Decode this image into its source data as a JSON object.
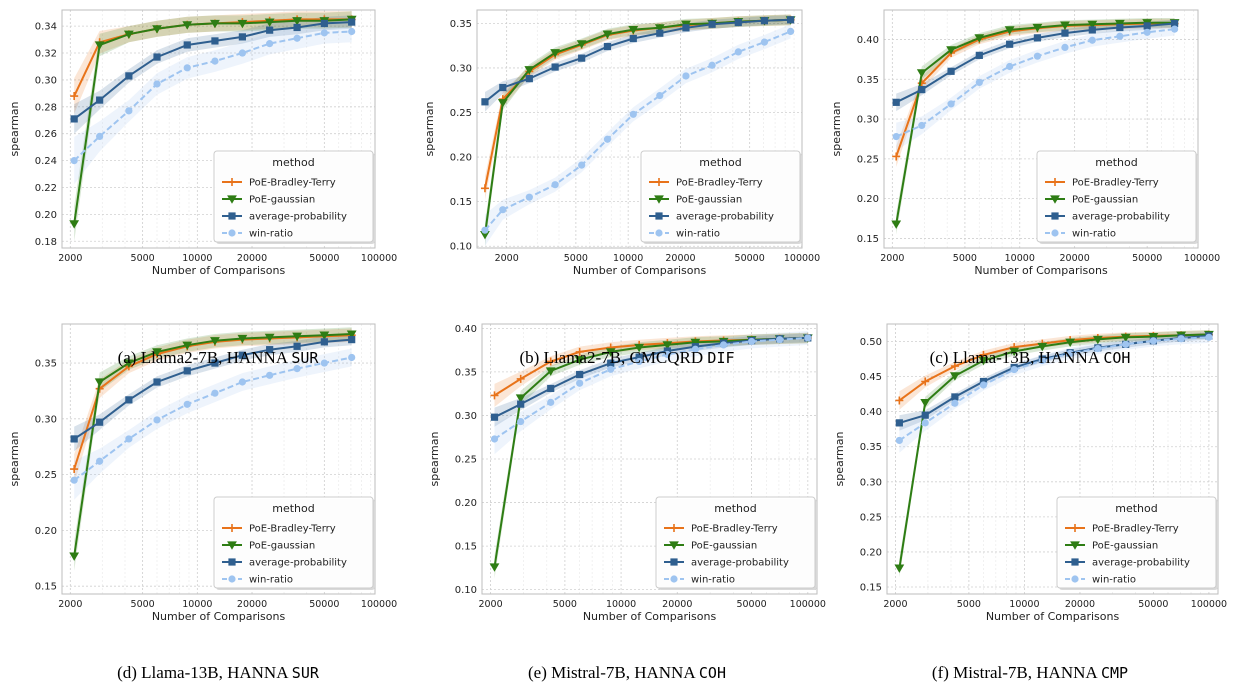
{
  "colors": {
    "PoE-Bradley-Terry": "#e8731a",
    "PoE-gaussian": "#2e7d14",
    "average-probability": "#2f5f8f",
    "win-ratio": "#9ec4f0",
    "grid": "#d0d0d0",
    "plot_bg": "#ffffff"
  },
  "legend": {
    "title": "method",
    "entries": [
      "PoE-Bradley-Terry",
      "PoE-gaussian",
      "average-probability",
      "win-ratio"
    ]
  },
  "captions": [
    {
      "label": "(a) Llama2-7B, HANNA",
      "code": "SUR"
    },
    {
      "label": "(b) Llama2-7B, CMCQRD",
      "code": "DIF"
    },
    {
      "label": "(c) Llama-13B, HANNA",
      "code": "COH"
    },
    {
      "label": "(d) Llama-13B, HANNA",
      "code": "SUR"
    },
    {
      "label": "(e) Mistral-7B, HANNA",
      "code": "COH"
    },
    {
      "label": "(f) Mistral-7B, HANNA",
      "code": "CMP"
    }
  ],
  "chart_data": [
    {
      "type": "line",
      "title": "(a) Llama2-7B, HANNA SUR",
      "xlabel": "Number of Comparisons",
      "ylabel": "spearman",
      "xscale": "log",
      "xlim": [
        1800,
        95000
      ],
      "ylim": [
        0.175,
        0.352
      ],
      "xticks": [
        2000,
        5000,
        10000,
        20000,
        50000,
        100000
      ],
      "xtick_labels": [
        "2000",
        "5000",
        "10000",
        "20000",
        "50000",
        "100000"
      ],
      "yticks": [
        0.18,
        0.2,
        0.22,
        0.24,
        0.26,
        0.28,
        0.3,
        0.32,
        0.34
      ],
      "ytick_labels": [
        "0.18",
        "0.20",
        "0.22",
        "0.24",
        "0.26",
        "0.28",
        "0.30",
        "0.32",
        "0.34"
      ],
      "legend_position": "lower-right",
      "x": [
        2100,
        2900,
        4200,
        6000,
        8800,
        12500,
        17700,
        25000,
        35400,
        50000,
        70700
      ],
      "series": [
        {
          "name": "PoE-Bradley-Terry",
          "values": [
            0.288,
            0.328,
            0.334,
            0.338,
            0.341,
            0.342,
            0.343,
            0.344,
            0.345,
            0.345,
            0.345
          ]
        },
        {
          "name": "PoE-gaussian",
          "values": [
            0.193,
            0.326,
            0.334,
            0.338,
            0.341,
            0.342,
            0.342,
            0.343,
            0.344,
            0.344,
            0.345
          ]
        },
        {
          "name": "average-probability",
          "values": [
            0.271,
            0.285,
            0.303,
            0.317,
            0.326,
            0.329,
            0.332,
            0.337,
            0.339,
            0.342,
            0.343
          ]
        },
        {
          "name": "win-ratio",
          "values": [
            0.24,
            0.258,
            0.277,
            0.297,
            0.309,
            0.314,
            0.32,
            0.327,
            0.331,
            0.335,
            0.336
          ]
        }
      ]
    },
    {
      "type": "line",
      "title": "(b) Llama2-7B, CMCQRD DIF",
      "xlabel": "Number of Comparisons",
      "ylabel": "spearman",
      "xscale": "log",
      "xlim": [
        1350,
        100000
      ],
      "ylim": [
        0.098,
        0.365
      ],
      "xticks": [
        2000,
        5000,
        10000,
        20000,
        50000,
        100000
      ],
      "xtick_labels": [
        "2000",
        "5000",
        "10000",
        "20000",
        "50000",
        "100000"
      ],
      "yticks": [
        0.1,
        0.15,
        0.2,
        0.25,
        0.3,
        0.35
      ],
      "ytick_labels": [
        "0.10",
        "0.15",
        "0.20",
        "0.25",
        "0.30",
        "0.35"
      ],
      "legend_position": "lower-right",
      "x": [
        1500,
        1900,
        2700,
        3800,
        5400,
        7600,
        10700,
        15200,
        21500,
        30400,
        43000,
        60800,
        86000
      ],
      "series": [
        {
          "name": "PoE-Bradley-Terry",
          "values": [
            0.165,
            0.265,
            0.296,
            0.315,
            0.326,
            0.337,
            0.342,
            0.345,
            0.348,
            0.35,
            0.352,
            0.353,
            0.354
          ]
        },
        {
          "name": "PoE-gaussian",
          "values": [
            0.113,
            0.261,
            0.298,
            0.317,
            0.327,
            0.338,
            0.343,
            0.345,
            0.349,
            0.35,
            0.352,
            0.353,
            0.354
          ]
        },
        {
          "name": "average-probability",
          "values": [
            0.262,
            0.278,
            0.288,
            0.301,
            0.311,
            0.324,
            0.333,
            0.339,
            0.345,
            0.349,
            0.351,
            0.353,
            0.354
          ]
        },
        {
          "name": "win-ratio",
          "values": [
            0.118,
            0.141,
            0.155,
            0.169,
            0.191,
            0.22,
            0.248,
            0.269,
            0.291,
            0.303,
            0.318,
            0.329,
            0.341
          ]
        }
      ]
    },
    {
      "type": "line",
      "title": "(c) Llama-13B, HANNA COH",
      "xlabel": "Number of Comparisons",
      "ylabel": "spearman",
      "xscale": "log",
      "xlim": [
        1800,
        95000
      ],
      "ylim": [
        0.138,
        0.437
      ],
      "xticks": [
        2000,
        5000,
        10000,
        20000,
        50000,
        100000
      ],
      "xtick_labels": [
        "2000",
        "5000",
        "10000",
        "20000",
        "50000",
        "100000"
      ],
      "yticks": [
        0.15,
        0.2,
        0.25,
        0.3,
        0.35,
        0.4
      ],
      "ytick_labels": [
        "0.15",
        "0.20",
        "0.25",
        "0.30",
        "0.35",
        "0.40"
      ],
      "legend_position": "lower-right",
      "x": [
        2100,
        2900,
        4200,
        6000,
        8800,
        12500,
        17700,
        25000,
        35400,
        50000,
        70700
      ],
      "series": [
        {
          "name": "PoE-Bradley-Terry",
          "values": [
            0.253,
            0.345,
            0.383,
            0.4,
            0.41,
            0.414,
            0.417,
            0.418,
            0.419,
            0.42,
            0.42
          ]
        },
        {
          "name": "PoE-gaussian",
          "values": [
            0.168,
            0.358,
            0.387,
            0.402,
            0.412,
            0.415,
            0.418,
            0.419,
            0.42,
            0.421,
            0.421
          ]
        },
        {
          "name": "average-probability",
          "values": [
            0.321,
            0.337,
            0.36,
            0.38,
            0.394,
            0.402,
            0.408,
            0.412,
            0.415,
            0.417,
            0.42
          ]
        },
        {
          "name": "win-ratio",
          "values": [
            0.278,
            0.292,
            0.319,
            0.346,
            0.366,
            0.379,
            0.39,
            0.399,
            0.404,
            0.409,
            0.413
          ]
        }
      ]
    },
    {
      "type": "line",
      "title": "(d) Llama-13B, HANNA SUR",
      "xlabel": "Number of Comparisons",
      "ylabel": "spearman",
      "xscale": "log",
      "xlim": [
        1800,
        95000
      ],
      "ylim": [
        0.143,
        0.385
      ],
      "xticks": [
        2000,
        5000,
        10000,
        20000,
        50000,
        100000
      ],
      "xtick_labels": [
        "2000",
        "5000",
        "10000",
        "20000",
        "50000",
        "100000"
      ],
      "yticks": [
        0.15,
        0.2,
        0.25,
        0.3,
        0.35
      ],
      "ytick_labels": [
        "0.15",
        "0.20",
        "0.25",
        "0.30",
        "0.35"
      ],
      "legend_position": "lower-right",
      "x": [
        2100,
        2900,
        4200,
        6000,
        8800,
        12500,
        17700,
        25000,
        35400,
        50000,
        70700
      ],
      "series": [
        {
          "name": "PoE-Bradley-Terry",
          "values": [
            0.255,
            0.327,
            0.347,
            0.358,
            0.365,
            0.369,
            0.371,
            0.372,
            0.373,
            0.374,
            0.375
          ]
        },
        {
          "name": "PoE-gaussian",
          "values": [
            0.177,
            0.333,
            0.35,
            0.36,
            0.366,
            0.37,
            0.372,
            0.373,
            0.374,
            0.375,
            0.376
          ]
        },
        {
          "name": "average-probability",
          "values": [
            0.282,
            0.297,
            0.317,
            0.333,
            0.343,
            0.35,
            0.357,
            0.362,
            0.365,
            0.369,
            0.371
          ]
        },
        {
          "name": "win-ratio",
          "values": [
            0.245,
            0.262,
            0.282,
            0.299,
            0.313,
            0.323,
            0.333,
            0.339,
            0.345,
            0.35,
            0.355
          ]
        }
      ]
    },
    {
      "type": "line",
      "title": "(e) Mistral-7B, HANNA COH",
      "xlabel": "Number of Comparisons",
      "ylabel": "spearman",
      "xscale": "log",
      "xlim": [
        1800,
        112000
      ],
      "ylim": [
        0.095,
        0.405
      ],
      "xticks": [
        2000,
        5000,
        10000,
        20000,
        50000,
        100000
      ],
      "xtick_labels": [
        "2000",
        "5000",
        "10000",
        "20000",
        "50000",
        "100000"
      ],
      "yticks": [
        0.1,
        0.15,
        0.2,
        0.25,
        0.3,
        0.35,
        0.4
      ],
      "ytick_labels": [
        "0.10",
        "0.15",
        "0.20",
        "0.25",
        "0.30",
        "0.35",
        "0.40"
      ],
      "legend_position": "lower-right",
      "x": [
        2100,
        2900,
        4200,
        6000,
        8800,
        12500,
        17700,
        25000,
        35400,
        50000,
        70700,
        100000
      ],
      "series": [
        {
          "name": "PoE-Bradley-Terry",
          "values": [
            0.323,
            0.342,
            0.362,
            0.373,
            0.378,
            0.381,
            0.383,
            0.385,
            0.386,
            0.387,
            0.388,
            0.389
          ]
        },
        {
          "name": "PoE-gaussian",
          "values": [
            0.126,
            0.32,
            0.351,
            0.364,
            0.373,
            0.378,
            0.381,
            0.384,
            0.385,
            0.387,
            0.388,
            0.389
          ]
        },
        {
          "name": "average-probability",
          "values": [
            0.298,
            0.313,
            0.331,
            0.347,
            0.36,
            0.367,
            0.374,
            0.379,
            0.383,
            0.386,
            0.388,
            0.389
          ]
        },
        {
          "name": "win-ratio",
          "values": [
            0.273,
            0.293,
            0.315,
            0.337,
            0.353,
            0.362,
            0.37,
            0.376,
            0.381,
            0.385,
            0.387,
            0.389
          ]
        }
      ]
    },
    {
      "type": "line",
      "title": "(f) Mistral-7B, HANNA CMP",
      "xlabel": "Number of Comparisons",
      "ylabel": "spearman",
      "xscale": "log",
      "xlim": [
        1800,
        112000
      ],
      "ylim": [
        0.14,
        0.525
      ],
      "xticks": [
        2000,
        5000,
        10000,
        20000,
        50000,
        100000
      ],
      "xtick_labels": [
        "2000",
        "5000",
        "10000",
        "20000",
        "50000",
        "100000"
      ],
      "yticks": [
        0.15,
        0.2,
        0.25,
        0.3,
        0.35,
        0.4,
        0.45,
        0.5
      ],
      "ytick_labels": [
        "0.15",
        "0.20",
        "0.25",
        "0.30",
        "0.35",
        "0.40",
        "0.45",
        "0.50"
      ],
      "legend_position": "lower-right",
      "x": [
        2100,
        2900,
        4200,
        6000,
        8800,
        12500,
        17700,
        25000,
        35400,
        50000,
        70700,
        100000
      ],
      "series": [
        {
          "name": "PoE-Bradley-Terry",
          "values": [
            0.416,
            0.443,
            0.465,
            0.481,
            0.492,
            0.497,
            0.502,
            0.505,
            0.507,
            0.508,
            0.509,
            0.51
          ]
        },
        {
          "name": "PoE-gaussian",
          "values": [
            0.177,
            0.413,
            0.451,
            0.473,
            0.486,
            0.493,
            0.499,
            0.503,
            0.506,
            0.507,
            0.509,
            0.51
          ]
        },
        {
          "name": "average-probability",
          "values": [
            0.384,
            0.395,
            0.421,
            0.443,
            0.463,
            0.475,
            0.484,
            0.491,
            0.496,
            0.501,
            0.505,
            0.508
          ]
        },
        {
          "name": "win-ratio",
          "values": [
            0.359,
            0.384,
            0.412,
            0.438,
            0.46,
            0.473,
            0.483,
            0.49,
            0.496,
            0.501,
            0.504,
            0.506
          ]
        }
      ]
    }
  ]
}
